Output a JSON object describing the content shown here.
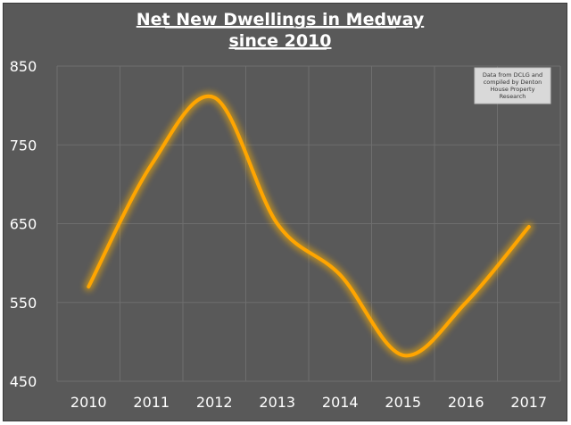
{
  "chart_data": {
    "type": "line",
    "title_lines": [
      "Net New Dwellings in Medway",
      "since 2010"
    ],
    "subtitle": "",
    "xlabel": "",
    "ylabel": "",
    "categories": [
      "2010",
      "2011",
      "2012",
      "2013",
      "2014",
      "2015",
      "2016",
      "2017"
    ],
    "series": [
      {
        "values": [
          570,
          725,
          810,
          650,
          585,
          483,
          550,
          646
        ]
      }
    ],
    "ylim": [
      450,
      850
    ],
    "yticks": [
      450,
      550,
      650,
      750,
      850
    ],
    "grid": true,
    "smooth": true,
    "annotation_lines": [
      "Data from DCLG and",
      "compiled by Denton",
      "House Property",
      "Research"
    ],
    "colors": {
      "background": "#595959",
      "line": "#ffa500",
      "glow": "#ffb300",
      "grid": "#6e6e6e",
      "text": "#ffffff",
      "note_box": "#d9d9d9"
    }
  }
}
